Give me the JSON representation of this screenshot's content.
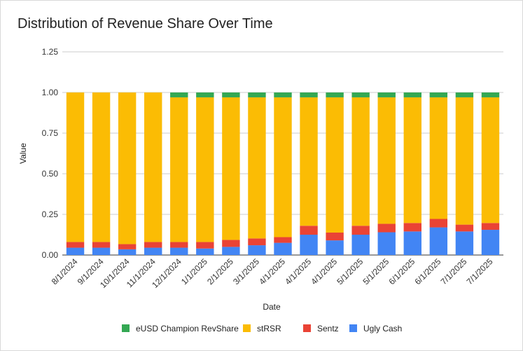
{
  "chart_data": {
    "type": "bar",
    "stacked": true,
    "title": "Distribution of Revenue Share Over Time",
    "xlabel": "Date",
    "ylabel": "Value",
    "ylim": [
      0,
      1.25
    ],
    "yticks": [
      "0.00",
      "0.25",
      "0.50",
      "0.75",
      "1.00",
      "1.25"
    ],
    "grid": true,
    "legend_position": "bottom",
    "categories": [
      "8/1/2024",
      "9/1/2024",
      "10/1/2024",
      "11/1/2024",
      "12/1/2024",
      "1/1/2025",
      "2/1/2025",
      "3/1/2025",
      "4/1/2025",
      "4/1/2025",
      "4/1/2025",
      "5/1/2025",
      "5/1/2025",
      "6/1/2025",
      "6/1/2025",
      "7/1/2025",
      "7/1/2025"
    ],
    "series": [
      {
        "name": "Ugly Cash",
        "color": "#4285f4",
        "values": [
          0.045,
          0.045,
          0.035,
          0.045,
          0.045,
          0.04,
          0.05,
          0.06,
          0.075,
          0.125,
          0.09,
          0.125,
          0.14,
          0.145,
          0.17,
          0.145,
          0.155
        ]
      },
      {
        "name": "Sentz",
        "color": "#ea4335",
        "values": [
          0.035,
          0.035,
          0.032,
          0.035,
          0.035,
          0.04,
          0.043,
          0.042,
          0.035,
          0.055,
          0.048,
          0.055,
          0.052,
          0.052,
          0.052,
          0.042,
          0.042
        ]
      },
      {
        "name": "stRSR",
        "color": "#fbbc04",
        "values": [
          0.92,
          0.92,
          0.933,
          0.92,
          0.89,
          0.89,
          0.877,
          0.868,
          0.86,
          0.79,
          0.832,
          0.79,
          0.778,
          0.773,
          0.748,
          0.783,
          0.773
        ]
      },
      {
        "name": "eUSD Champion RevShare",
        "color": "#34a853",
        "values": [
          0,
          0,
          0,
          0,
          0.03,
          0.03,
          0.03,
          0.03,
          0.03,
          0.03,
          0.03,
          0.03,
          0.03,
          0.03,
          0.03,
          0.03,
          0.03
        ]
      }
    ],
    "legend_order": [
      "eUSD Champion RevShare",
      "stRSR",
      "Sentz",
      "Ugly Cash"
    ]
  }
}
